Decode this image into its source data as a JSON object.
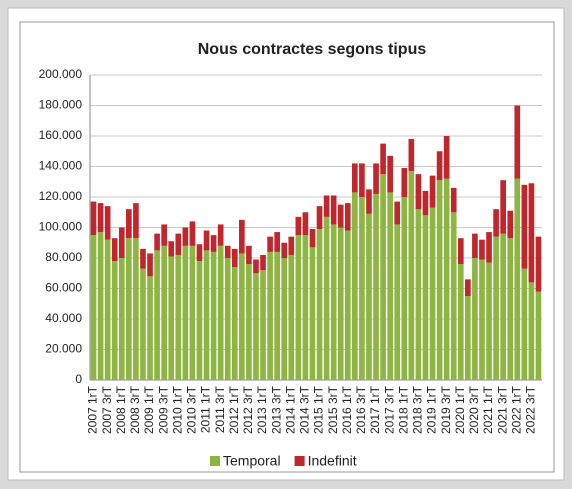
{
  "chart_data": {
    "type": "stacked_bar",
    "title": "Nous contractes segons tipus",
    "categories": [
      "2007 1rT",
      null,
      "2007 3rT",
      null,
      "2008 1rT",
      null,
      "2008 3rT",
      null,
      "2009 1rT",
      null,
      "2009 3rT",
      null,
      "2010 1rT",
      null,
      "2010 3rT",
      null,
      "2011 1rT",
      null,
      "2011 3rT",
      null,
      "2012 1rT",
      null,
      "2012 3rT",
      null,
      "2013 1rT",
      null,
      "2013 3rT",
      null,
      "2014 1rT",
      null,
      "2014 3rT",
      null,
      "2015 1rT",
      null,
      "2015 3rT",
      null,
      "2016 1rT",
      null,
      "2016 3rT",
      null,
      "2017 1rT",
      null,
      "2017 3rT",
      null,
      "2018 1rT",
      null,
      "2018 3rT",
      null,
      "2019 1rT",
      null,
      "2019 3rT",
      null,
      "2020 1rT",
      null,
      "2020 3rT",
      null,
      "2021 1rT",
      null,
      "2021 3rT",
      null,
      "2022 1rT",
      null,
      "2022 3rT",
      null
    ],
    "series": [
      {
        "name": "Temporal",
        "color": "#8db542",
        "values": [
          95000,
          97000,
          92000,
          78000,
          80000,
          93000,
          93000,
          73000,
          68000,
          85000,
          88000,
          81000,
          82000,
          88000,
          88000,
          78000,
          85000,
          84000,
          88000,
          80000,
          74000,
          83000,
          76000,
          70000,
          72000,
          84000,
          84000,
          80000,
          82000,
          95000,
          95000,
          87000,
          99000,
          107000,
          102000,
          100000,
          98000,
          123000,
          120000,
          109000,
          122000,
          135000,
          123000,
          102000,
          120000,
          137000,
          112000,
          108000,
          113000,
          131000,
          132000,
          110000,
          76000,
          55000,
          80000,
          79000,
          77000,
          94000,
          96000,
          93000,
          132000,
          73000,
          64000,
          58000
        ]
      },
      {
        "name": "Indefinit",
        "color": "#c0272d",
        "values": [
          22000,
          19000,
          22000,
          15000,
          20000,
          19000,
          23000,
          13000,
          15000,
          11000,
          14000,
          10000,
          14000,
          12000,
          16000,
          11000,
          13000,
          11000,
          14000,
          8000,
          12000,
          22000,
          12000,
          9000,
          10000,
          10000,
          13000,
          10000,
          12000,
          12000,
          15000,
          12000,
          15000,
          14000,
          19000,
          15000,
          18000,
          19000,
          22000,
          16000,
          20000,
          20000,
          24000,
          15000,
          19000,
          21000,
          23000,
          16000,
          21000,
          19000,
          28000,
          16000,
          17000,
          11000,
          16000,
          13000,
          20000,
          18000,
          35000,
          18000,
          48000,
          55000,
          65000,
          36000
        ]
      }
    ],
    "ylim": [
      0,
      200000
    ],
    "yticks": [
      0,
      {
        "value": 20000,
        "label": "20.000"
      },
      {
        "value": 40000,
        "label": "40.000"
      },
      {
        "value": 60000,
        "label": "60.000"
      },
      {
        "value": 80000,
        "label": "80.000"
      },
      {
        "value": 100000,
        "label": "100.000"
      },
      {
        "value": 120000,
        "label": "120.000"
      },
      {
        "value": 140000,
        "label": "140.000"
      },
      {
        "value": 160000,
        "label": "160.000"
      },
      {
        "value": 180000,
        "label": "180.000"
      },
      {
        "value": 200000,
        "label": "200.000"
      }
    ],
    "grid": true,
    "legend": "bottom"
  }
}
